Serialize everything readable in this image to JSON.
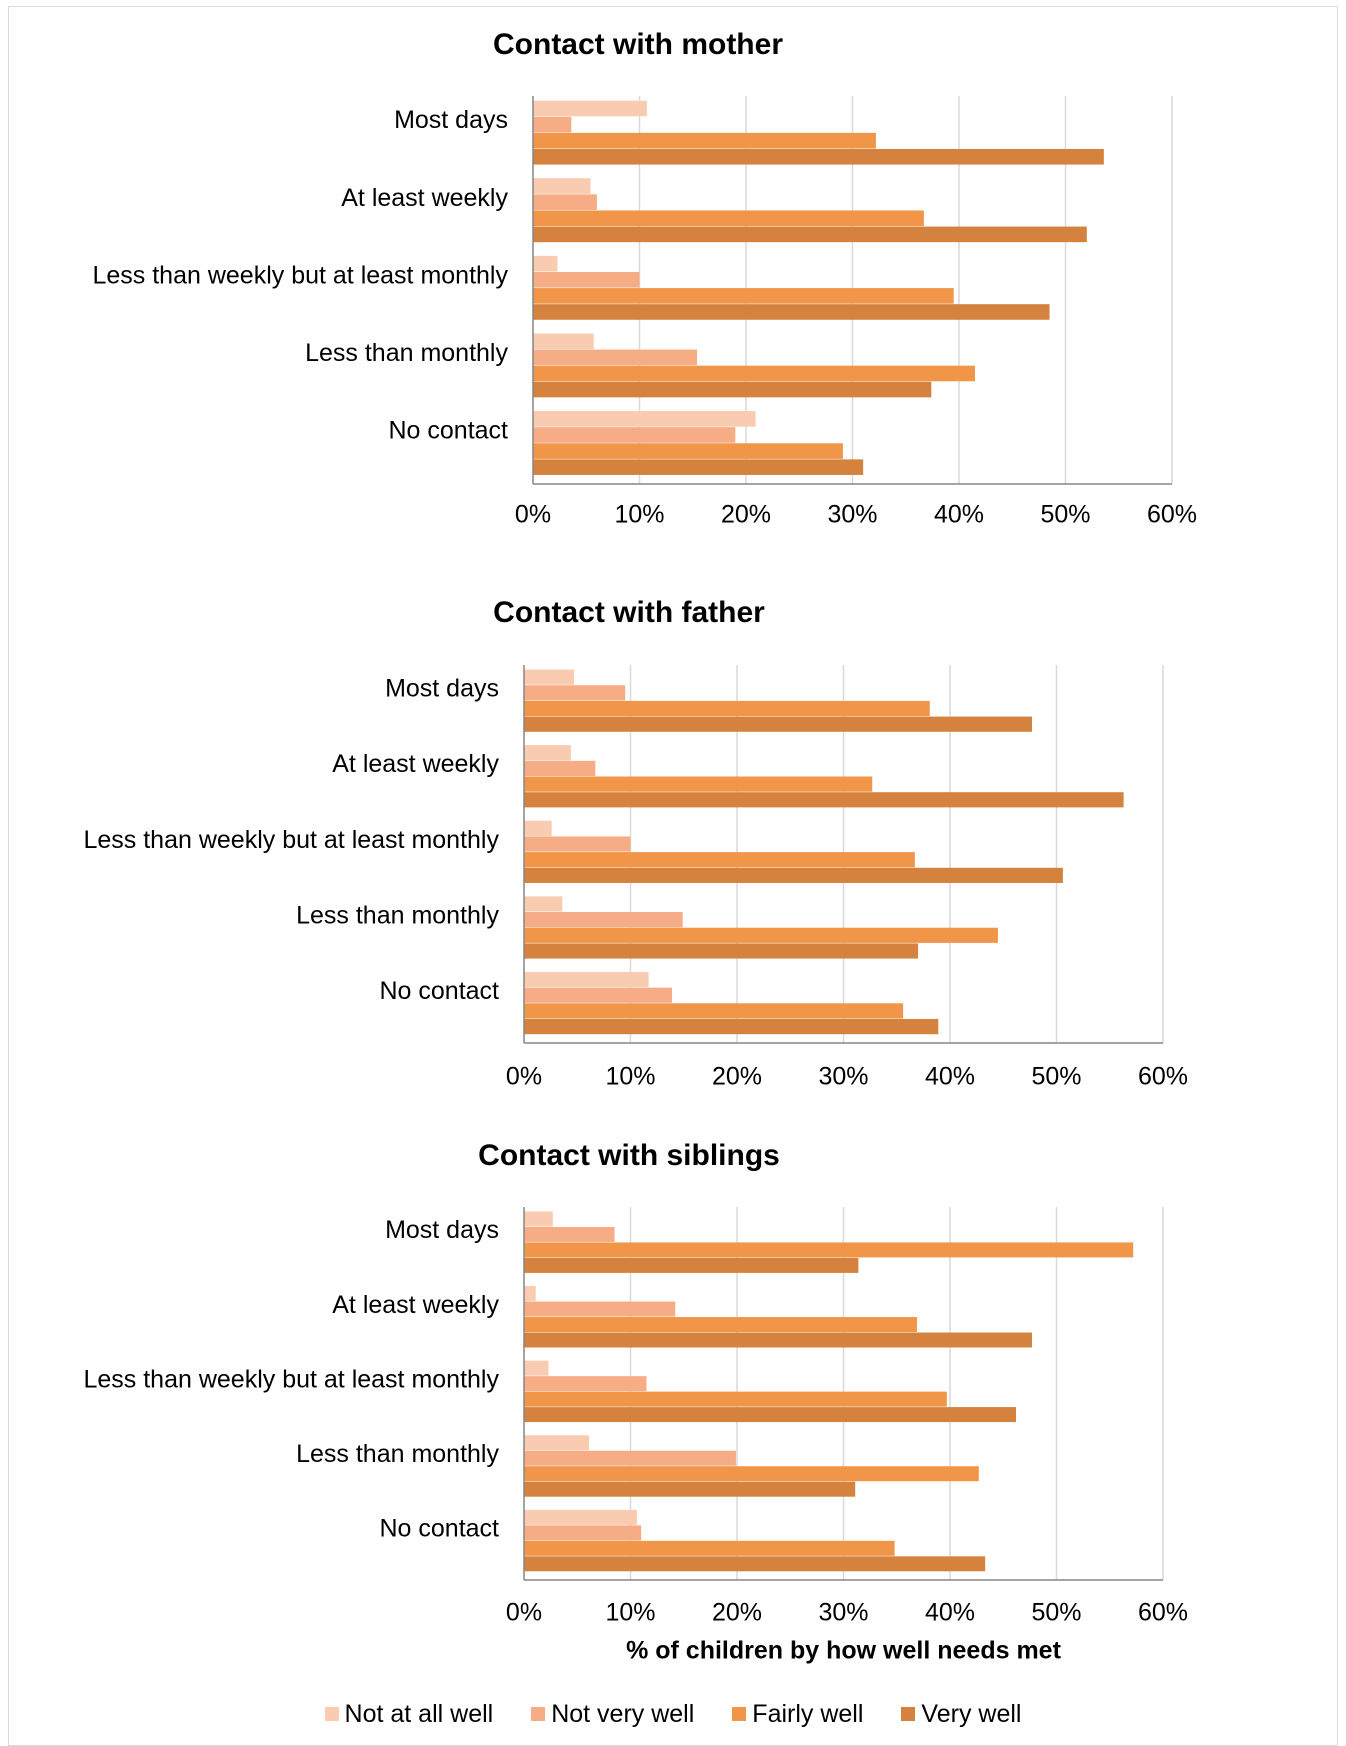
{
  "chart_data": [
    {
      "type": "bar",
      "orientation": "horizontal",
      "title": "Contact with mother",
      "categories": [
        "Most days",
        "At least weekly",
        "Less than weekly but at least monthly",
        "Less than monthly",
        "No contact"
      ],
      "series": [
        {
          "name": "Not at all well",
          "values": [
            10.7,
            5.4,
            2.3,
            5.7,
            20.9
          ]
        },
        {
          "name": "Not very well",
          "values": [
            3.6,
            6.0,
            10.0,
            15.4,
            19.0
          ]
        },
        {
          "name": "Fairly well",
          "values": [
            32.2,
            36.7,
            39.5,
            41.5,
            29.1
          ]
        },
        {
          "name": "Very well",
          "values": [
            53.6,
            52.0,
            48.5,
            37.4,
            31.0
          ]
        }
      ],
      "xlim": [
        0,
        60
      ],
      "xticks": [
        "0%",
        "10%",
        "20%",
        "30%",
        "40%",
        "50%",
        "60%"
      ],
      "xlabel": "",
      "grid": true
    },
    {
      "type": "bar",
      "orientation": "horizontal",
      "title": "Contact with father",
      "categories": [
        "Most days",
        "At least weekly",
        "Less than weekly but at least monthly",
        "Less than monthly",
        "No contact"
      ],
      "series": [
        {
          "name": "Not at all well",
          "values": [
            4.7,
            4.4,
            2.6,
            3.6,
            11.7
          ]
        },
        {
          "name": "Not very well",
          "values": [
            9.5,
            6.7,
            10.0,
            14.9,
            13.9
          ]
        },
        {
          "name": "Fairly well",
          "values": [
            38.1,
            32.7,
            36.7,
            44.5,
            35.6
          ]
        },
        {
          "name": "Very well",
          "values": [
            47.7,
            56.3,
            50.6,
            37.0,
            38.9
          ]
        }
      ],
      "xlim": [
        0,
        60
      ],
      "xticks": [
        "0%",
        "10%",
        "20%",
        "30%",
        "40%",
        "50%",
        "60%"
      ],
      "xlabel": "",
      "grid": true
    },
    {
      "type": "bar",
      "orientation": "horizontal",
      "title": "Contact with siblings",
      "categories": [
        "Most days",
        "At least weekly",
        "Less than weekly but at least monthly",
        "Less than monthly",
        "No contact"
      ],
      "series": [
        {
          "name": "Not at all well",
          "values": [
            2.7,
            1.1,
            2.3,
            6.1,
            10.6
          ]
        },
        {
          "name": "Not very well",
          "values": [
            8.5,
            14.2,
            11.5,
            19.9,
            11.0
          ]
        },
        {
          "name": "Fairly well",
          "values": [
            57.2,
            36.9,
            39.7,
            42.7,
            34.8
          ]
        },
        {
          "name": "Very well",
          "values": [
            31.4,
            47.7,
            46.2,
            31.1,
            43.3
          ]
        }
      ],
      "xlim": [
        0,
        60
      ],
      "xticks": [
        "0%",
        "10%",
        "20%",
        "30%",
        "40%",
        "50%",
        "60%"
      ],
      "xlabel": "% of children by how well needs met",
      "grid": true
    }
  ],
  "legend": {
    "placement": "bottom",
    "items": [
      {
        "label": "Not at all well",
        "color": "#f9cbb0"
      },
      {
        "label": "Not very well",
        "color": "#f6ad86"
      },
      {
        "label": "Fairly well",
        "color": "#f19548"
      },
      {
        "label": "Very well",
        "color": "#d5823f"
      }
    ]
  },
  "colors": {
    "series": [
      "#f9cbb0",
      "#f6ad86",
      "#f19548",
      "#d5823f"
    ],
    "grid": "#d9d9d9",
    "axis": "#868686"
  }
}
